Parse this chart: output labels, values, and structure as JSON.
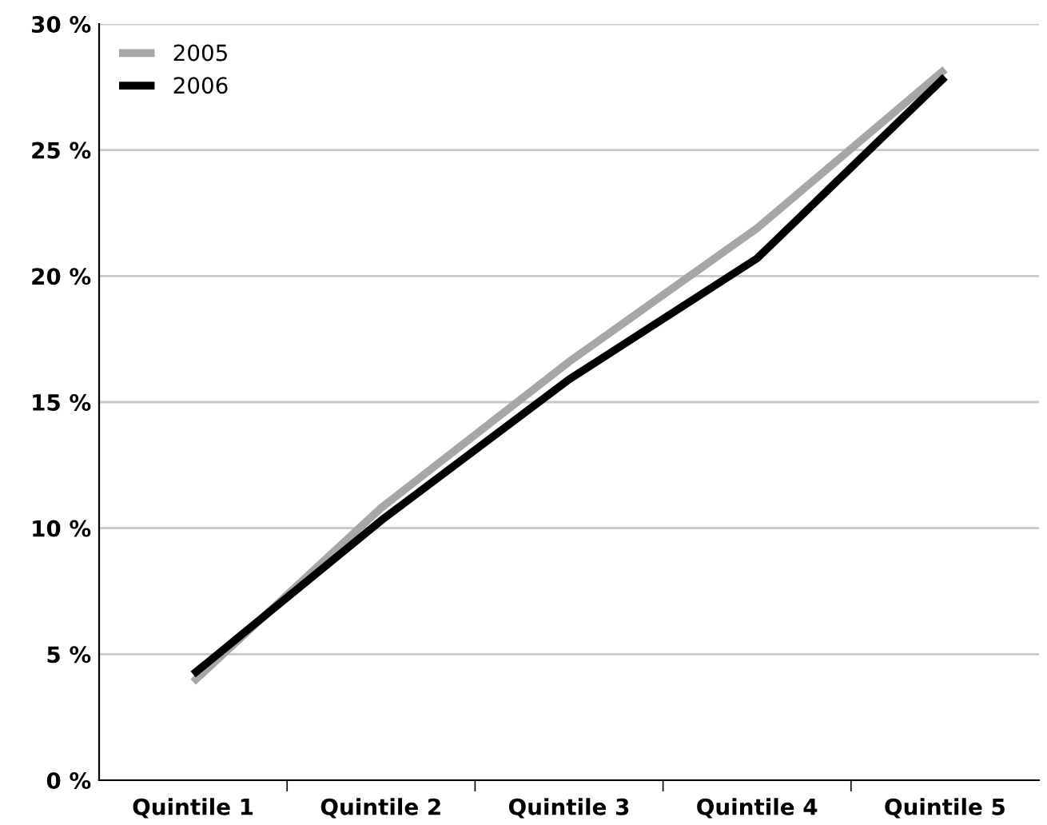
{
  "chart_data": {
    "type": "line",
    "categories": [
      "Quintile 1",
      "Quintile 2",
      "Quintile 3",
      "Quintile 4",
      "Quintile 5"
    ],
    "series": [
      {
        "name": "2005",
        "color": "#a6a6a6",
        "values": [
          3.9,
          10.8,
          16.6,
          21.9,
          28.2
        ]
      },
      {
        "name": "2006",
        "color": "#000000",
        "values": [
          4.2,
          10.3,
          15.9,
          20.7,
          27.9
        ]
      }
    ],
    "ylim": [
      0,
      30
    ],
    "yticks": [
      {
        "value": 0,
        "label": "0 %"
      },
      {
        "value": 5,
        "label": "5 %"
      },
      {
        "value": 10,
        "label": "10 %"
      },
      {
        "value": 15,
        "label": "15 %"
      },
      {
        "value": 20,
        "label": "20 %"
      },
      {
        "value": 25,
        "label": "25 %"
      },
      {
        "value": 30,
        "label": "30 %"
      }
    ],
    "grid": "y",
    "legend": "top left",
    "marker": "none",
    "line_style": "solid"
  }
}
